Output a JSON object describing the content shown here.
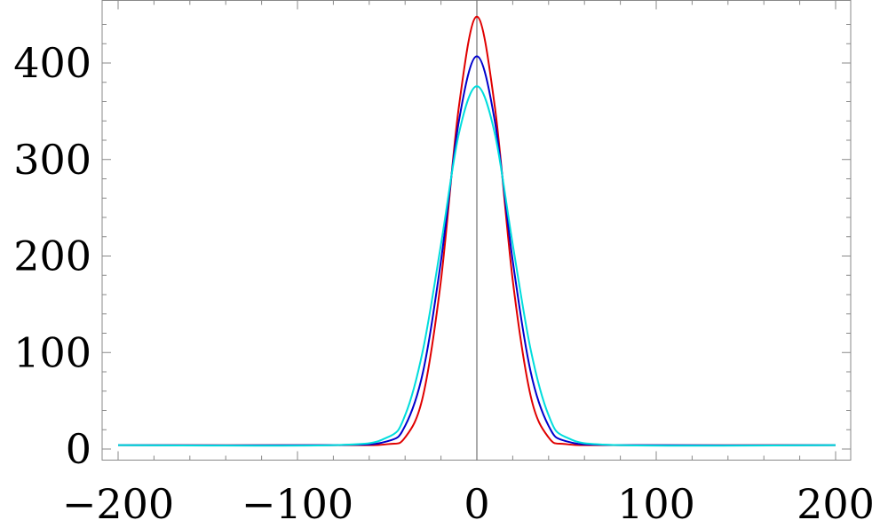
{
  "chart_data": {
    "type": "line",
    "title": "",
    "xlabel": "",
    "ylabel": "",
    "xlim": [
      -200,
      200
    ],
    "ylim": [
      0,
      450
    ],
    "x_ticks": [
      -200,
      -100,
      0,
      100,
      200
    ],
    "x_tick_labels": [
      "−200",
      "−100",
      "0",
      "100",
      "200"
    ],
    "y_ticks": [
      0,
      100,
      200,
      300,
      400
    ],
    "y_tick_labels": [
      "0",
      "100",
      "200",
      "300",
      "400"
    ],
    "grid": false,
    "legend": "none",
    "series": [
      {
        "color": "#e00000",
        "x": [
          -200,
          -80,
          -50,
          -40,
          -30,
          -20,
          -10,
          0,
          10,
          20,
          30,
          40,
          50,
          80,
          200
        ],
        "y": [
          4,
          4,
          5,
          12,
          55,
          175,
          355,
          448,
          355,
          175,
          55,
          12,
          5,
          4,
          4
        ]
      },
      {
        "color": "#0000cc",
        "x": [
          -200,
          -80,
          -50,
          -40,
          -30,
          -20,
          -10,
          0,
          10,
          20,
          30,
          40,
          50,
          80,
          200
        ],
        "y": [
          4,
          4,
          8,
          24,
          80,
          195,
          340,
          407,
          340,
          195,
          80,
          24,
          8,
          4,
          4
        ]
      },
      {
        "color": "#00dddd",
        "x": [
          -200,
          -80,
          -50,
          -40,
          -30,
          -20,
          -10,
          0,
          10,
          20,
          30,
          40,
          50,
          80,
          200
        ],
        "y": [
          4,
          4,
          12,
          35,
          103,
          212,
          327,
          376,
          327,
          212,
          103,
          35,
          12,
          4,
          4
        ]
      }
    ]
  }
}
